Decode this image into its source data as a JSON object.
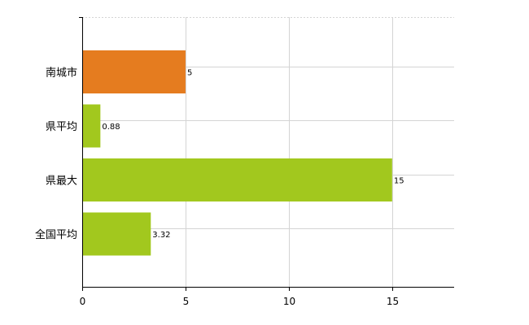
{
  "chart_data": {
    "type": "bar",
    "orientation": "horizontal",
    "categories": [
      "南城市",
      "県平均",
      "県最大",
      "全国平均"
    ],
    "values": [
      5,
      0.88,
      15,
      3.32
    ],
    "value_labels": [
      "5",
      "0.88",
      "15",
      "3.32"
    ],
    "colors": [
      "#e57c1f",
      "#a2c81e",
      "#a2c81e",
      "#a2c81e"
    ],
    "xlim": [
      0,
      18
    ],
    "xticks": [
      0,
      5,
      10,
      15
    ],
    "grid": true,
    "legend": "none"
  }
}
